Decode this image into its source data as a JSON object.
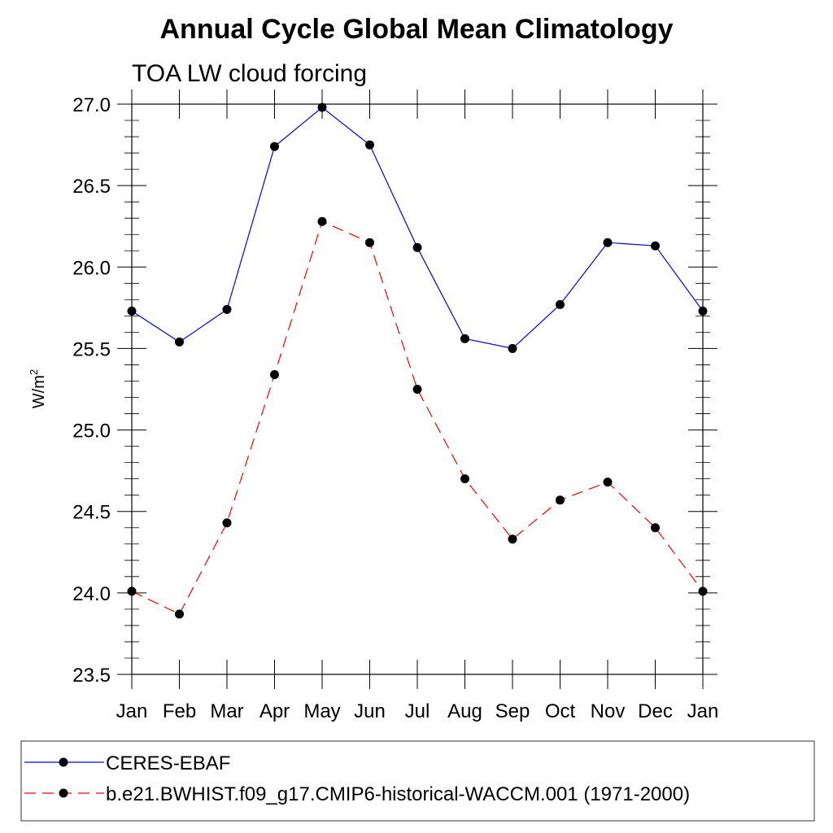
{
  "chart_data": {
    "type": "line",
    "title": "Annual Cycle Global Mean Climatology",
    "subtitle": "TOA LW cloud forcing",
    "ylabel": "W/m",
    "ylabel_superscript": "2",
    "ylim": [
      23.5,
      27.0
    ],
    "yticks": [
      "23.5",
      "24.0",
      "24.5",
      "25.0",
      "25.5",
      "26.0",
      "26.5",
      "27.0"
    ],
    "ytick_values": [
      23.5,
      24.0,
      24.5,
      25.0,
      25.5,
      26.0,
      26.5,
      27.0
    ],
    "categories": [
      "Jan",
      "Feb",
      "Mar",
      "Apr",
      "May",
      "Jun",
      "Jul",
      "Aug",
      "Sep",
      "Oct",
      "Nov",
      "Dec",
      "Jan"
    ],
    "grid": false,
    "legend_placement": "bottom",
    "series": [
      {
        "name": "CERES-EBAF",
        "color": "#0000ff",
        "line_style": "solid",
        "marker": "filled-circle",
        "values": [
          25.73,
          25.54,
          25.74,
          26.74,
          26.98,
          26.75,
          26.12,
          25.56,
          25.5,
          25.77,
          26.15,
          26.13,
          25.73
        ]
      },
      {
        "name": "b.e21.BWHIST.f09_g17.CMIP6-historical-WACCM.001 (1971-2000)",
        "color": "#ff0000",
        "line_style": "dashed",
        "marker": "filled-circle",
        "values": [
          24.01,
          23.87,
          24.43,
          25.34,
          26.28,
          26.15,
          25.25,
          24.7,
          24.33,
          24.57,
          24.68,
          24.4,
          24.01
        ]
      }
    ]
  }
}
